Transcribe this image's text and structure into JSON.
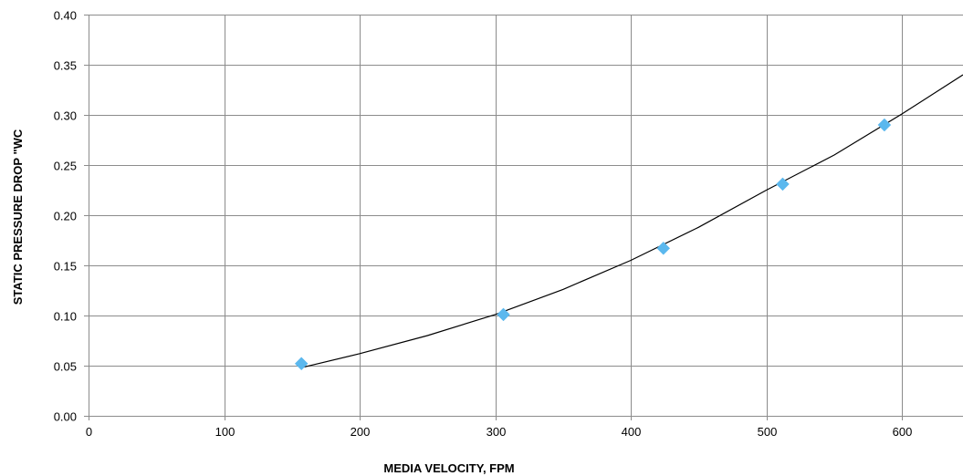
{
  "chart_data": {
    "type": "scatter",
    "title": "",
    "xlabel": "MEDIA VELOCITY, FPM",
    "ylabel": "STATIC PRESSURE DROP \"WC",
    "xlim": [
      0,
      645
    ],
    "ylim": [
      0,
      0.4
    ],
    "x_ticks": [
      "0",
      "100",
      "200",
      "300",
      "400",
      "500",
      "600"
    ],
    "y_ticks": [
      "0.00",
      "0.05",
      "0.10",
      "0.15",
      "0.20",
      "0.25",
      "0.30",
      "0.35",
      "0.40"
    ],
    "grid": true,
    "legend": "none",
    "series": [
      {
        "marker": "diamond",
        "color": "#5BB8EE",
        "x": [
          157,
          306,
          424,
          512,
          587
        ],
        "y": [
          0.052,
          0.101,
          0.167,
          0.231,
          0.29
        ]
      }
    ],
    "trendline": {
      "type": "power",
      "color": "#000000",
      "x": [
        157,
        200,
        250,
        300,
        350,
        400,
        450,
        500,
        550,
        600,
        645
      ],
      "y": [
        0.048,
        0.062,
        0.08,
        0.101,
        0.126,
        0.155,
        0.188,
        0.225,
        0.26,
        0.301,
        0.34
      ]
    }
  }
}
